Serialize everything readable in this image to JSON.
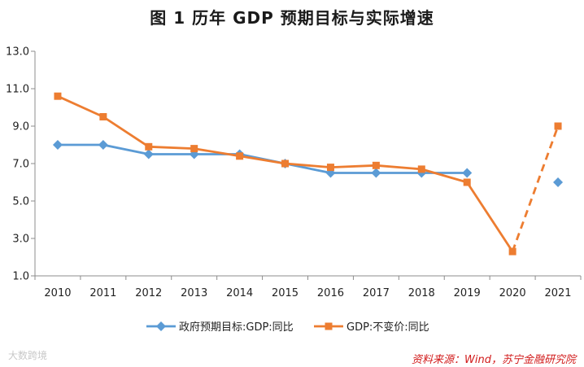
{
  "chart_data": {
    "type": "line",
    "title": "图 1  历年 GDP 预期目标与实际增速",
    "categories": [
      "2010",
      "2011",
      "2012",
      "2013",
      "2014",
      "2015",
      "2016",
      "2017",
      "2018",
      "2019",
      "2020",
      "2021"
    ],
    "y_ticks": [
      "13.0",
      "11.0",
      "9.0",
      "7.0",
      "5.0",
      "3.0",
      "1.0"
    ],
    "ylim": [
      1.0,
      13.0
    ],
    "series": [
      {
        "name": "政府预期目标:GDP:同比",
        "color": "#5b9bd5",
        "marker": "diamond",
        "values": [
          8.0,
          8.0,
          7.5,
          7.5,
          7.5,
          7.0,
          6.5,
          6.5,
          6.5,
          6.5,
          null,
          6.0
        ],
        "dashed_from_index": null
      },
      {
        "name": "GDP:不变价:同比",
        "color": "#ed7d31",
        "marker": "square",
        "values": [
          10.6,
          9.5,
          7.9,
          7.8,
          7.4,
          7.0,
          6.8,
          6.9,
          6.7,
          6.0,
          2.3,
          9.0
        ],
        "dashed_from_index": 10
      }
    ]
  },
  "watermark": "大数跨境",
  "source": "资料来源：Wind，苏宁金融研究院"
}
